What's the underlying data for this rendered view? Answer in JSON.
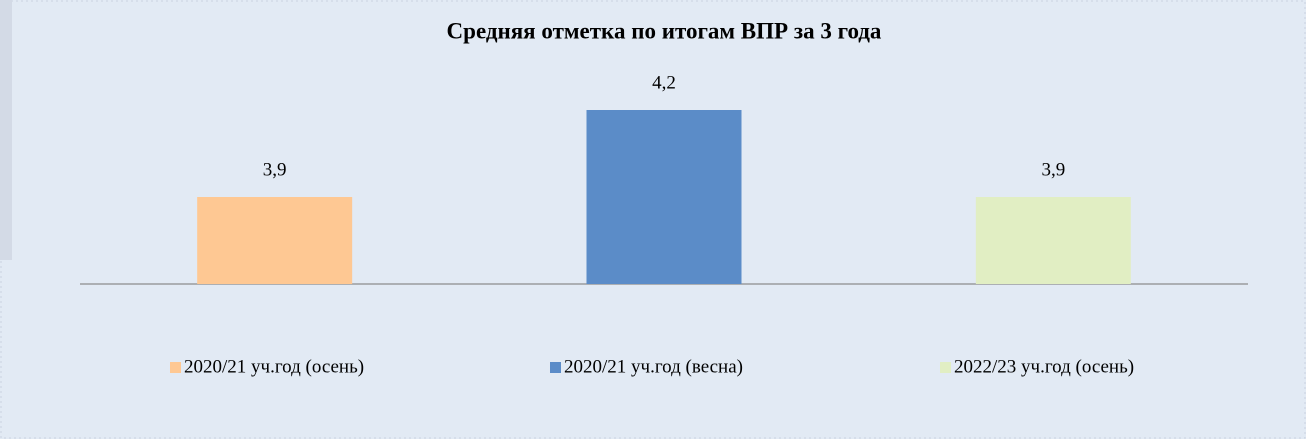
{
  "chart_data": {
    "type": "bar",
    "title": "Средняя отметка по итогам ВПР за 3 года",
    "categories": [
      null
    ],
    "series": [
      {
        "name": "2020/21 уч.год (осень)",
        "color": "#fec893",
        "values": [
          3.9
        ],
        "value_labels": [
          "3,9"
        ]
      },
      {
        "name": "2020/21 уч.год (весна)",
        "color": "#5b8cc8",
        "values": [
          4.2
        ],
        "value_labels": [
          "4,2"
        ]
      },
      {
        "name": "2022/23 уч.год (осень)",
        "color": "#e1eec3",
        "values": [
          3.9
        ],
        "value_labels": [
          "3,9"
        ]
      }
    ],
    "ylim": [
      3.6,
      4.3
    ],
    "legend": "bottom"
  }
}
